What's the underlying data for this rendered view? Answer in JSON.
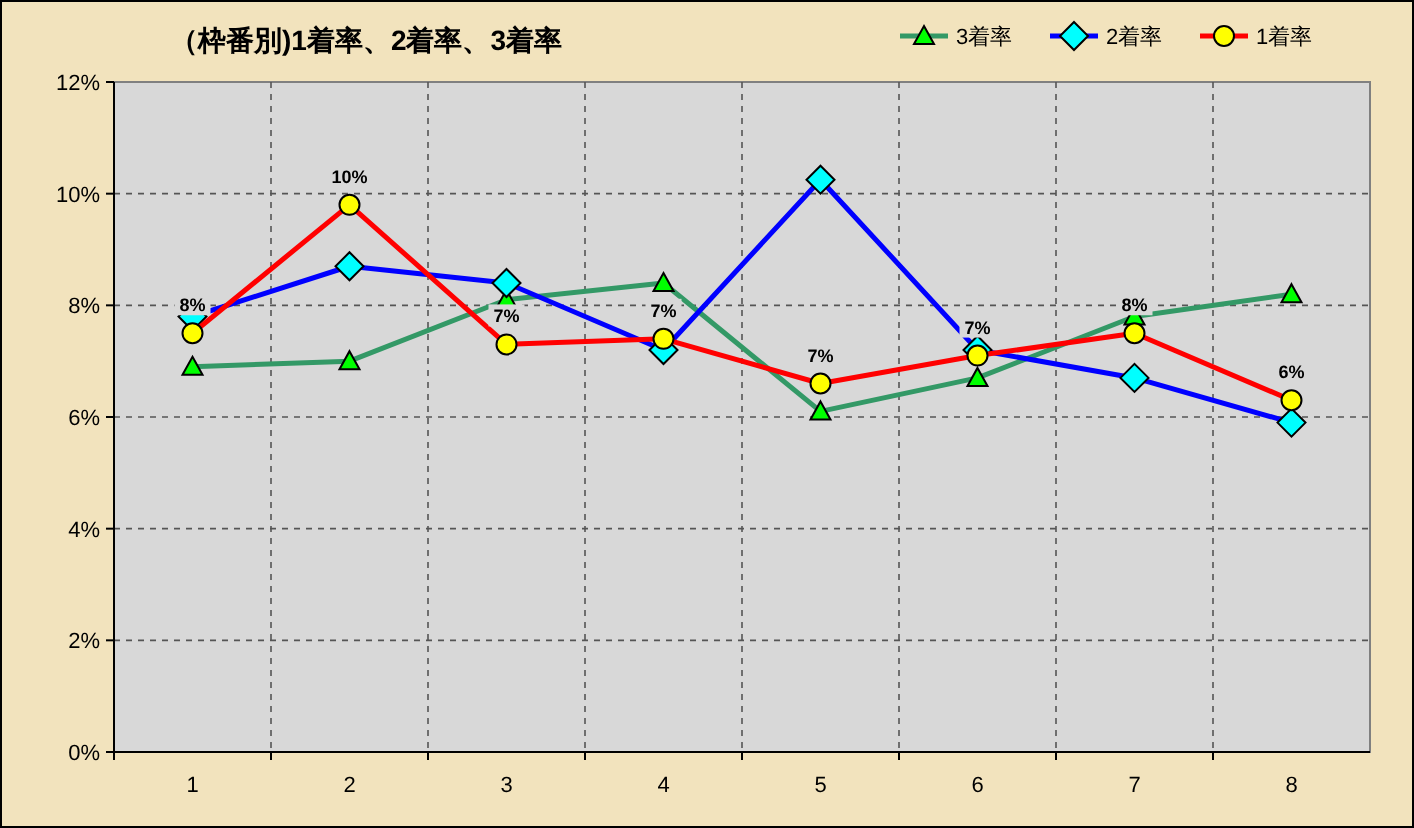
{
  "chart_data": {
    "type": "line",
    "title": "（枠番別)1着率、2着率、3着率",
    "categories": [
      "1",
      "2",
      "3",
      "4",
      "5",
      "6",
      "7",
      "8"
    ],
    "ylim": [
      0,
      12
    ],
    "yticks": [
      {
        "value": 0,
        "label": "0%"
      },
      {
        "value": 2,
        "label": "2%"
      },
      {
        "value": 4,
        "label": "4%"
      },
      {
        "value": 6,
        "label": "6%"
      },
      {
        "value": 8,
        "label": "8%"
      },
      {
        "value": 10,
        "label": "10%"
      },
      {
        "value": 12,
        "label": "12%"
      }
    ],
    "grid": true,
    "legend": "top right",
    "line_style": "solid",
    "series": [
      {
        "name": "3着率",
        "color": "#339966",
        "marker": "triangle",
        "values": [
          6.9,
          7.0,
          8.1,
          8.4,
          6.1,
          6.7,
          7.8,
          8.2
        ]
      },
      {
        "name": "2着率",
        "color": "#0000ff",
        "marker": "diamond",
        "values": [
          7.8,
          8.7,
          8.4,
          7.2,
          10.25,
          7.2,
          6.7,
          5.9
        ]
      },
      {
        "name": "1着率",
        "color": "#ff0000",
        "marker": "circle",
        "values": [
          7.5,
          9.8,
          7.3,
          7.4,
          6.6,
          7.1,
          7.5,
          6.3
        ],
        "value_labels": [
          "8%",
          "10%",
          "7%",
          "7%",
          "7%",
          "7%",
          "8%",
          "6%"
        ]
      }
    ]
  }
}
